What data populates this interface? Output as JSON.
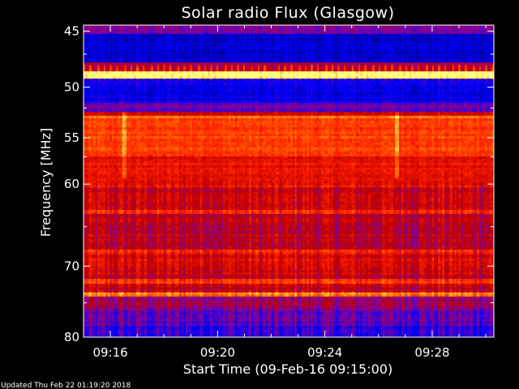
{
  "footer": "Updated Thu Feb 22 01:19:20 2018",
  "chart_data": {
    "type": "heatmap",
    "title": "Solar radio Flux (Glasgow)",
    "xlabel": "Start Time (09-Feb-16 09:15:00)",
    "ylabel": "Frequency [MHz]",
    "x_unit": "minutes after 09:15:00",
    "xlim": [
      0,
      15.3
    ],
    "ylim": [
      80,
      44.5
    ],
    "y_scale": "log",
    "x_ticks": [
      {
        "value": 1,
        "label": "09:16"
      },
      {
        "value": 5,
        "label": "09:20"
      },
      {
        "value": 9,
        "label": "09:24"
      },
      {
        "value": 13,
        "label": "09:28"
      }
    ],
    "y_ticks": [
      {
        "value": 45,
        "label": "45"
      },
      {
        "value": 50,
        "label": "50"
      },
      {
        "value": 55,
        "label": "55"
      },
      {
        "value": 60,
        "label": "60"
      },
      {
        "value": 70,
        "label": "70"
      },
      {
        "value": 80,
        "label": "80"
      }
    ],
    "colormap": [
      "#000080",
      "#0000ff",
      "#8000a0",
      "#c00000",
      "#ff2000",
      "#ff8000",
      "#ffff80"
    ],
    "frequency_bands": [
      {
        "from": 44.5,
        "to": 45.2,
        "level": 0.35
      },
      {
        "from": 45.2,
        "to": 47.8,
        "level": 0.1
      },
      {
        "from": 47.8,
        "to": 48.5,
        "level": 0.45
      },
      {
        "from": 48.5,
        "to": 49.2,
        "level": 0.98
      },
      {
        "from": 49.2,
        "to": 51.5,
        "level": 0.15
      },
      {
        "from": 51.5,
        "to": 52.3,
        "level": 0.3
      },
      {
        "from": 52.3,
        "to": 52.8,
        "level": 0.55
      },
      {
        "from": 52.8,
        "to": 53.1,
        "level": 0.85
      },
      {
        "from": 53.1,
        "to": 54.5,
        "level": 0.7
      },
      {
        "from": 54.5,
        "to": 57.0,
        "level": 0.72
      },
      {
        "from": 57.0,
        "to": 60.5,
        "level": 0.6
      },
      {
        "from": 60.5,
        "to": 63.0,
        "level": 0.5
      },
      {
        "from": 63.0,
        "to": 63.6,
        "level": 0.65
      },
      {
        "from": 63.6,
        "to": 68.0,
        "level": 0.48
      },
      {
        "from": 68.0,
        "to": 68.6,
        "level": 0.65
      },
      {
        "from": 68.6,
        "to": 70.5,
        "level": 0.55
      },
      {
        "from": 70.5,
        "to": 71.6,
        "level": 0.5
      },
      {
        "from": 71.6,
        "to": 72.3,
        "level": 0.72
      },
      {
        "from": 72.3,
        "to": 73.5,
        "level": 0.5
      },
      {
        "from": 73.5,
        "to": 74.2,
        "level": 0.82
      },
      {
        "from": 74.2,
        "to": 76.0,
        "level": 0.4
      },
      {
        "from": 76.0,
        "to": 78.5,
        "level": 0.3
      },
      {
        "from": 78.5,
        "to": 80.0,
        "level": 0.2
      }
    ],
    "features": [
      {
        "type": "periodic_bursts",
        "freq_from": 48.0,
        "freq_to": 49.5,
        "period_min": 0.25
      },
      {
        "type": "vertical_streak",
        "time": 1.5,
        "freq_from": 52.5,
        "freq_to": 59.5
      },
      {
        "type": "vertical_streak",
        "time": 11.7,
        "freq_from": 52.5,
        "freq_to": 59.5
      }
    ]
  }
}
